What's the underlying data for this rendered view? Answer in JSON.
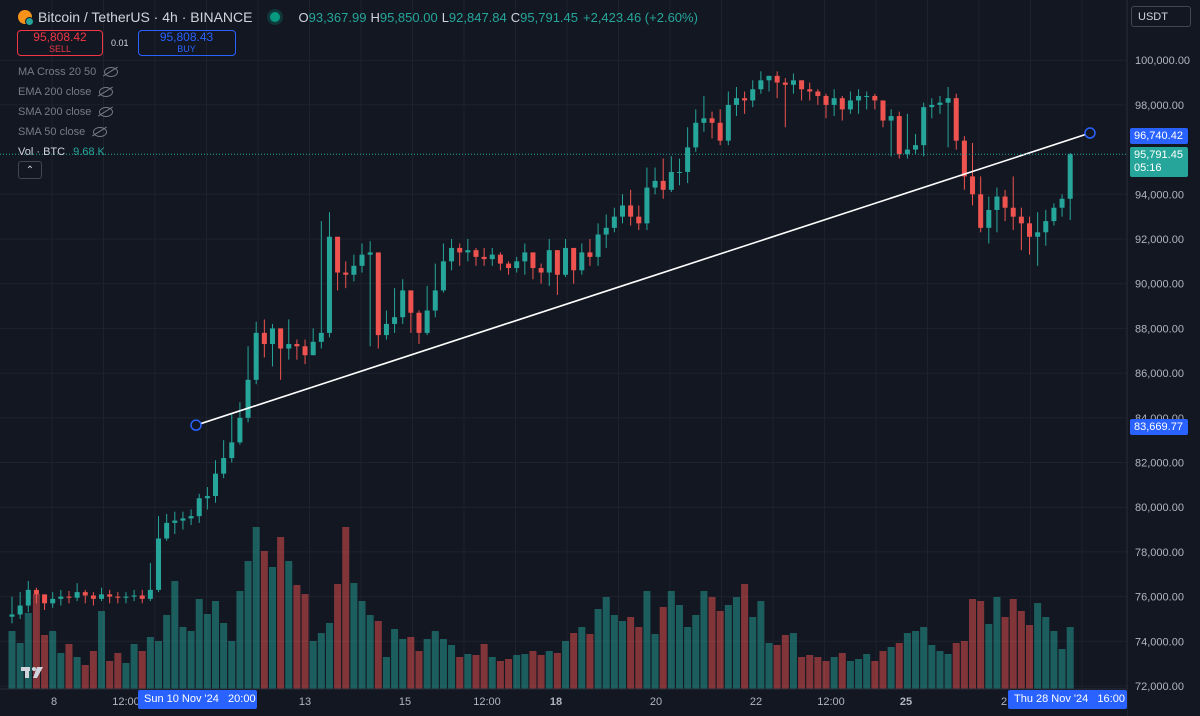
{
  "header": {
    "symbol_title": "Bitcoin / TetherUS · 4h · BINANCE",
    "open_label": "O",
    "open": "93,367.99",
    "high_label": "H",
    "high": "95,850.00",
    "low_label": "L",
    "low": "92,847.84",
    "close_label": "C",
    "close": "95,791.45",
    "change": "+2,423.46 (+2.60%)"
  },
  "trade": {
    "sell_price": "95,808.42",
    "sell_label": "SELL",
    "spread": "0.01",
    "buy_price": "95,808.43",
    "buy_label": "BUY"
  },
  "indicators": [
    {
      "label": "MA Cross 20 50",
      "icon": "eye-hidden-icon"
    },
    {
      "label": "EMA 200 close",
      "icon": "eye-hidden-icon"
    },
    {
      "label": "SMA 200 close",
      "icon": "eye-hidden-icon"
    },
    {
      "label": "SMA 50 close",
      "icon": "eye-hidden-icon"
    }
  ],
  "volume": {
    "label": "Vol · BTC",
    "value": "9.68 K"
  },
  "currency": "USDT",
  "price_axis": {
    "ticks": [
      {
        "value": 100000,
        "label": "100,000.00"
      },
      {
        "value": 98000,
        "label": "98,000.00"
      },
      {
        "value": 94000,
        "label": "94,000.00"
      },
      {
        "value": 92000,
        "label": "92,000.00"
      },
      {
        "value": 90000,
        "label": "90,000.00"
      },
      {
        "value": 88000,
        "label": "88,000.00"
      },
      {
        "value": 86000,
        "label": "86,000.00"
      },
      {
        "value": 84000,
        "label": "84,000.00"
      },
      {
        "value": 82000,
        "label": "82,000.00"
      },
      {
        "value": 80000,
        "label": "80,000.00"
      },
      {
        "value": 78000,
        "label": "78,000.00"
      },
      {
        "value": 76000,
        "label": "76,000.00"
      },
      {
        "value": 74000,
        "label": "74,000.00"
      },
      {
        "value": 72000,
        "label": "72,000.00"
      }
    ],
    "trendline_end_label": "96,740.42",
    "trendline_start_label": "83,669.77",
    "last_price_label": "95,791.45",
    "countdown": "05:16"
  },
  "time_axis": {
    "ticks": [
      "8",
      "12:00",
      "13",
      "15",
      "12:00",
      "18",
      "20",
      "22",
      "12:00",
      "25",
      "2"
    ],
    "crosshair_start": "Sun 10 Nov '24   20:00",
    "crosshair_end": "Thu 28 Nov '24   16:00"
  },
  "colors": {
    "up": "#26a69a",
    "down": "#ef5350",
    "accent": "#2962ff",
    "background": "#131722"
  },
  "chart_data": {
    "type": "candlestick",
    "interval": "4h",
    "x_range": [
      "2024-11-07",
      "2024-11-28 16:00"
    ],
    "ylim": [
      72000,
      101000
    ],
    "trendline": {
      "start": {
        "time": "2024-11-10 20:00",
        "price": 83669.77
      },
      "end": {
        "time": "2024-11-28 16:00",
        "price": 96740.42
      }
    },
    "last_bar": {
      "open": 93367.99,
      "high": 95850.0,
      "low": 92847.84,
      "close": 95791.45
    },
    "closes": [
      75200,
      75600,
      76300,
      76100,
      75700,
      75900,
      76000,
      75950,
      76200,
      76050,
      75900,
      76100,
      76000,
      75950,
      76000,
      76050,
      75900,
      76300,
      78600,
      79300,
      79400,
      79500,
      79600,
      80400,
      80500,
      81500,
      82200,
      82900,
      84000,
      85700,
      87800,
      87300,
      88000,
      87100,
      87300,
      87200,
      86800,
      87400,
      87800,
      92100,
      90500,
      90400,
      90800,
      91300,
      91400,
      87700,
      88200,
      88500,
      89700,
      88700,
      87800,
      88800,
      89700,
      91000,
      91600,
      91400,
      91500,
      91200,
      91100,
      91300,
      90900,
      90700,
      91000,
      91400,
      90700,
      90500,
      91500,
      90400,
      91600,
      90600,
      91400,
      91200,
      92200,
      92500,
      93000,
      93500,
      93000,
      92700,
      94300,
      94600,
      94200,
      95000,
      95000,
      96100,
      97200,
      97400,
      97200,
      96400,
      98000,
      98300,
      98200,
      98700,
      99100,
      99300,
      99000,
      98900,
      99100,
      98700,
      98600,
      98400,
      98000,
      98300,
      97800,
      98200,
      98400,
      98400,
      98200,
      97300,
      97500,
      95800,
      96000,
      96200,
      97900,
      98000,
      98100,
      98300,
      96400,
      94800,
      94000,
      92500,
      93300,
      93900,
      93400,
      93000,
      92700,
      92100,
      92300,
      92800,
      93400,
      93800,
      95791
    ],
    "highs": [
      76000,
      76200,
      76700,
      76400,
      76100,
      76200,
      76300,
      76250,
      76600,
      76300,
      76200,
      76400,
      76300,
      76200,
      76200,
      76300,
      76300,
      77500,
      79600,
      79700,
      79800,
      79800,
      79900,
      80600,
      80900,
      82100,
      83000,
      84200,
      84700,
      87200,
      88300,
      88400,
      88200,
      88000,
      88400,
      87500,
      87500,
      88000,
      92800,
      93200,
      91000,
      91000,
      91300,
      91800,
      91900,
      90000,
      88800,
      89800,
      90200,
      89500,
      88800,
      89900,
      90900,
      91800,
      92000,
      91800,
      92000,
      91600,
      91600,
      91600,
      91400,
      91000,
      91200,
      91800,
      91200,
      90900,
      92000,
      91400,
      92000,
      91300,
      91800,
      92000,
      92700,
      93100,
      93400,
      94000,
      94200,
      93500,
      95200,
      95200,
      95600,
      95700,
      95600,
      97000,
      97800,
      98400,
      97700,
      97800,
      98600,
      98800,
      98600,
      99100,
      99500,
      99300,
      99500,
      99200,
      99400,
      99100,
      99000,
      98700,
      98500,
      98700,
      98400,
      98600,
      98700,
      98600,
      98500,
      98200,
      97800,
      97700,
      97600,
      96700,
      98100,
      98300,
      98400,
      98800,
      98500,
      96600,
      96300,
      94800,
      93900,
      94300,
      94200,
      94800,
      93400,
      93000,
      93200,
      93300,
      93600,
      94000,
      95850
    ],
    "lows": [
      74800,
      75000,
      75300,
      75700,
      75400,
      75500,
      75600,
      75700,
      75800,
      75700,
      75600,
      75800,
      75700,
      75700,
      75700,
      75800,
      75700,
      75800,
      76200,
      78500,
      78800,
      79000,
      79200,
      79300,
      79900,
      80200,
      81300,
      82000,
      82800,
      83800,
      85500,
      86700,
      86300,
      85700,
      86600,
      86600,
      86400,
      86900,
      87100,
      87600,
      89700,
      89800,
      90100,
      90500,
      87200,
      87100,
      87500,
      87800,
      88200,
      87800,
      87300,
      87700,
      88500,
      89600,
      90600,
      90800,
      91000,
      90800,
      90800,
      90800,
      90600,
      90400,
      90500,
      90400,
      90200,
      90000,
      89900,
      89500,
      90300,
      90000,
      90400,
      90800,
      90800,
      91600,
      92300,
      92700,
      92600,
      92400,
      92400,
      94000,
      93800,
      94100,
      94400,
      94500,
      95900,
      96800,
      96500,
      96200,
      96200,
      97500,
      97600,
      97900,
      98500,
      98600,
      98300,
      97000,
      98500,
      98200,
      98200,
      98000,
      97400,
      97500,
      97300,
      97600,
      97600,
      97800,
      97800,
      97000,
      95700,
      95600,
      95600,
      95800,
      95700,
      97400,
      97600,
      96100,
      96000,
      94200,
      93500,
      92300,
      91800,
      92300,
      92800,
      92400,
      91500,
      91300,
      90800,
      91700,
      92600,
      93000,
      92847
    ],
    "volumes": [
      0.58,
      0.46,
      0.76,
      0.95,
      0.54,
      0.58,
      0.36,
      0.45,
      0.32,
      0.24,
      0.38,
      0.78,
      0.28,
      0.36,
      0.26,
      0.45,
      0.38,
      0.52,
      0.48,
      0.74,
      1.08,
      0.62,
      0.58,
      0.9,
      0.75,
      0.88,
      0.66,
      0.48,
      0.98,
      1.28,
      1.62,
      1.38,
      1.22,
      1.52,
      1.28,
      1.04,
      0.95,
      0.48,
      0.56,
      0.66,
      1.05,
      1.62,
      1.06,
      0.88,
      0.74,
      0.68,
      0.32,
      0.6,
      0.5,
      0.52,
      0.38,
      0.5,
      0.58,
      0.5,
      0.44,
      0.32,
      0.35,
      0.34,
      0.45,
      0.32,
      0.28,
      0.3,
      0.34,
      0.35,
      0.38,
      0.34,
      0.38,
      0.36,
      0.48,
      0.56,
      0.62,
      0.55,
      0.8,
      0.92,
      0.74,
      0.68,
      0.72,
      0.62,
      0.98,
      0.55,
      0.82,
      0.98,
      0.84,
      0.62,
      0.74,
      0.98,
      0.92,
      0.78,
      0.84,
      0.92,
      1.05,
      0.72,
      0.88,
      0.46,
      0.44,
      0.54,
      0.56,
      0.32,
      0.34,
      0.32,
      0.28,
      0.32,
      0.36,
      0.28,
      0.3,
      0.35,
      0.28,
      0.38,
      0.42,
      0.46,
      0.56,
      0.58,
      0.62,
      0.44,
      0.38,
      0.35,
      0.46,
      0.48,
      0.9,
      0.88,
      0.65,
      0.92,
      0.72,
      0.9,
      0.78,
      0.64,
      0.86,
      0.72,
      0.58,
      0.4,
      0.62
    ]
  }
}
